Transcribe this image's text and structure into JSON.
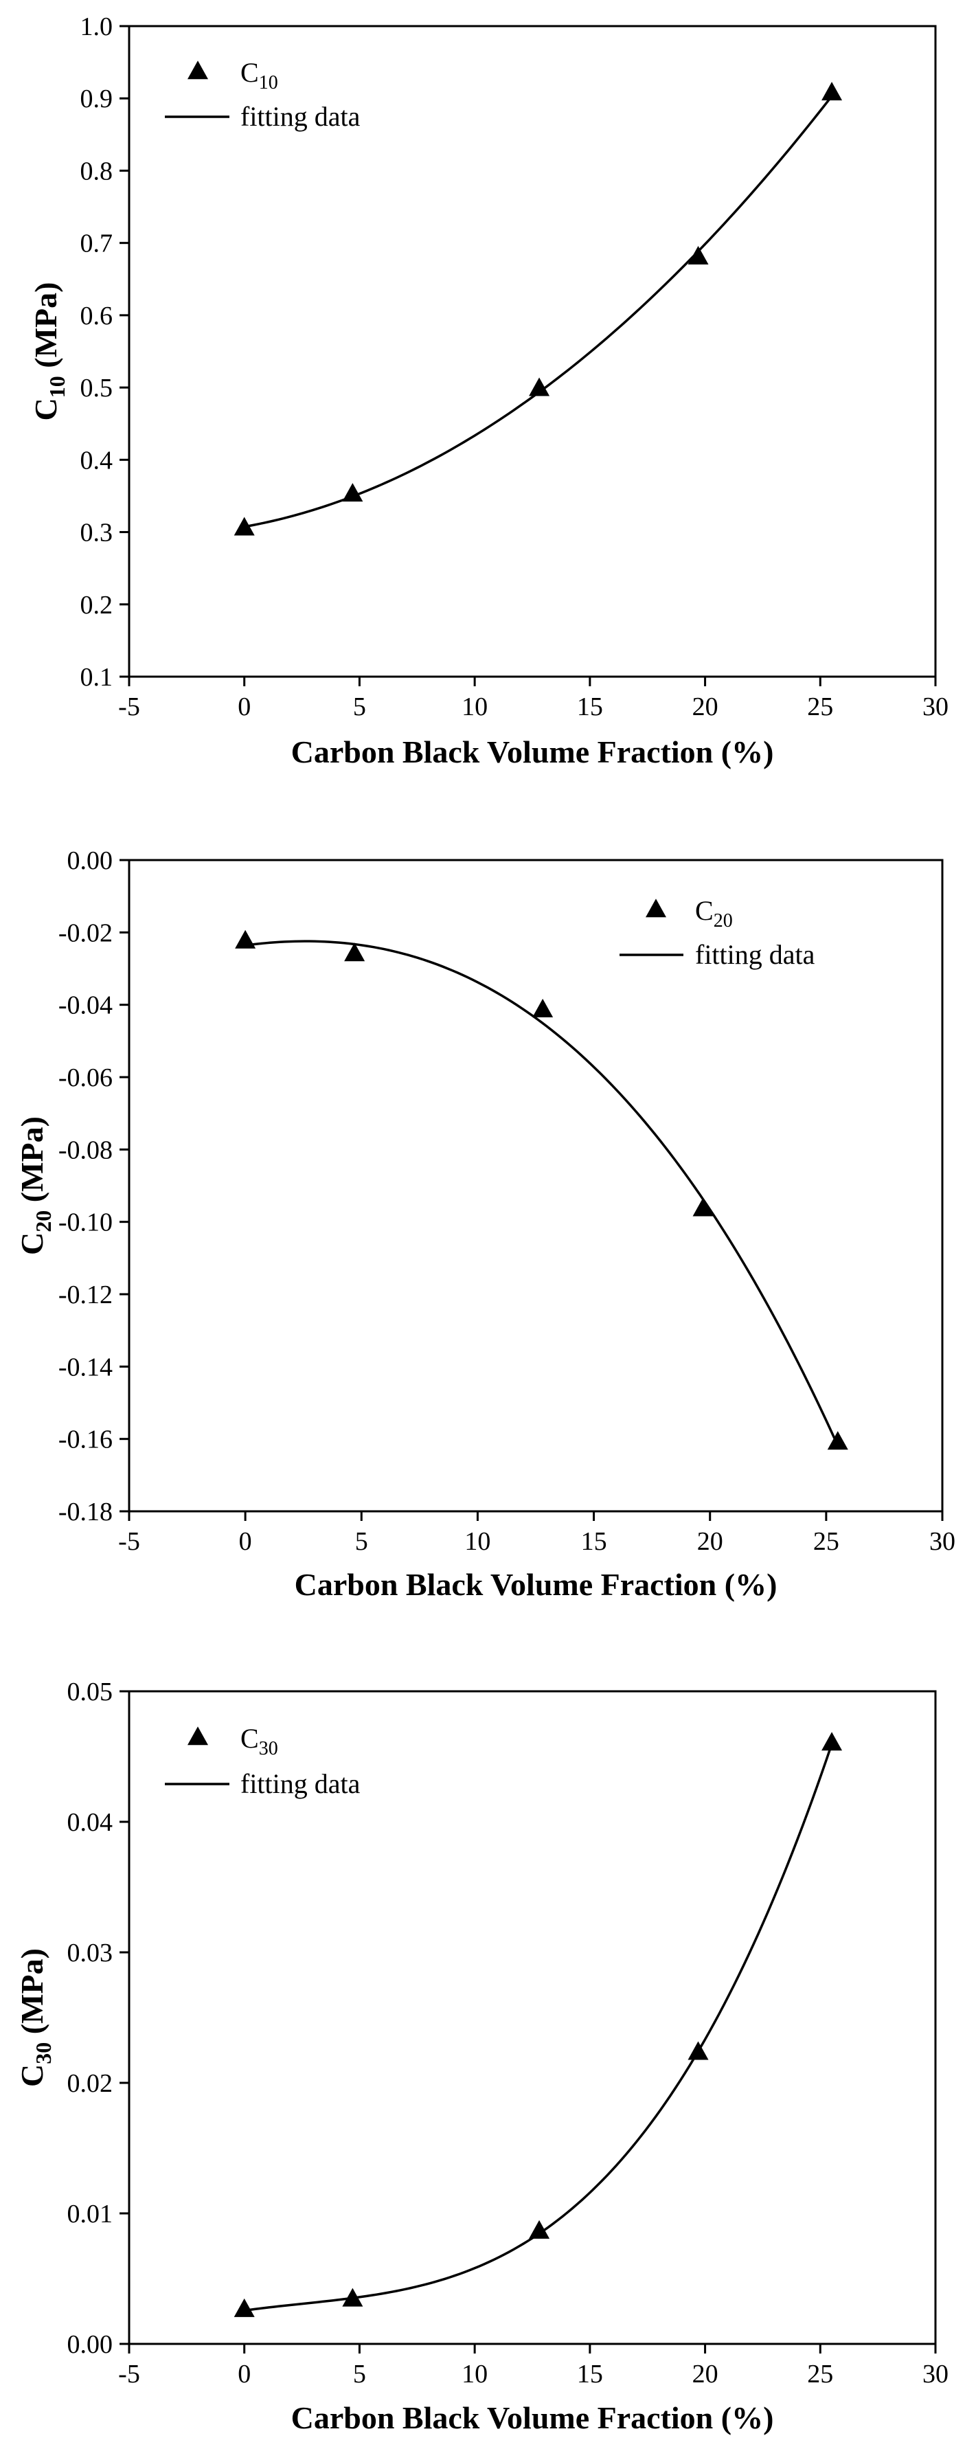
{
  "chart_data": [
    {
      "type": "scatter",
      "x": [
        0,
        4.7,
        12.8,
        19.7,
        25.5
      ],
      "series": [
        {
          "name": "C10",
          "marker": "triangle",
          "values": [
            0.305,
            0.352,
            0.498,
            0.68,
            0.907
          ]
        },
        {
          "name": "fitting data",
          "type": "line",
          "fit": "quadratic"
        }
      ],
      "legend": {
        "symbol_main": "C",
        "symbol_sub": "10",
        "line_label": "fitting data",
        "placement": "top-left"
      },
      "xlabel": "Carbon Black Volume Fraction (%)",
      "ylabel_main": "C",
      "ylabel_sub": "10",
      "ylabel_unit": " (MPa)",
      "xlim": [
        -5,
        30
      ],
      "ylim": [
        0.1,
        1.0
      ],
      "xticks": [
        -5,
        0,
        5,
        10,
        15,
        20,
        25,
        30
      ],
      "yticks": [
        0.1,
        0.2,
        0.3,
        0.4,
        0.5,
        0.6,
        0.7,
        0.8,
        0.9,
        1.0
      ],
      "xtick_labels": [
        "-5",
        "0",
        "5",
        "10",
        "15",
        "20",
        "25",
        "30"
      ],
      "ytick_labels": [
        "0.1",
        "0.2",
        "0.3",
        "0.4",
        "0.5",
        "0.6",
        "0.7",
        "0.8",
        "0.9",
        "1.0"
      ],
      "grid": false
    },
    {
      "type": "scatter",
      "x": [
        0,
        4.7,
        12.8,
        19.7,
        25.5
      ],
      "series": [
        {
          "name": "C20",
          "marker": "triangle",
          "values": [
            -0.0225,
            -0.026,
            -0.0415,
            -0.0965,
            -0.161
          ]
        },
        {
          "name": "fitting data",
          "type": "line",
          "fit": "cubic"
        }
      ],
      "legend": {
        "symbol_main": "C",
        "symbol_sub": "20",
        "line_label": "fitting data",
        "placement": "top-right"
      },
      "xlabel": "Carbon Black Volume Fraction (%)",
      "ylabel_main": "C",
      "ylabel_sub": "20",
      "ylabel_unit": " (MPa)",
      "xlim": [
        -5,
        30
      ],
      "ylim": [
        -0.18,
        0.0
      ],
      "xticks": [
        -5,
        0,
        5,
        10,
        15,
        20,
        25,
        30
      ],
      "yticks": [
        -0.18,
        -0.16,
        -0.14,
        -0.12,
        -0.1,
        -0.08,
        -0.06,
        -0.04,
        -0.02,
        0.0
      ],
      "xtick_labels": [
        "-5",
        "0",
        "5",
        "10",
        "15",
        "20",
        "25",
        "30"
      ],
      "ytick_labels": [
        "-0.18",
        "-0.16",
        "-0.14",
        "-0.12",
        "-0.10",
        "-0.08",
        "-0.06",
        "-0.04",
        "-0.02",
        "0.00"
      ],
      "grid": false
    },
    {
      "type": "scatter",
      "x": [
        0,
        4.7,
        12.8,
        19.7,
        25.5
      ],
      "series": [
        {
          "name": "C30",
          "marker": "triangle",
          "values": [
            0.0026,
            0.0034,
            0.0086,
            0.0223,
            0.046
          ]
        },
        {
          "name": "fitting data",
          "type": "line",
          "fit": "cubic"
        }
      ],
      "legend": {
        "symbol_main": "C",
        "symbol_sub": "30",
        "line_label": "fitting data",
        "placement": "top-left"
      },
      "xlabel": "Carbon Black Volume Fraction (%)",
      "ylabel_main": "C",
      "ylabel_sub": "30",
      "ylabel_unit": " (MPa)",
      "xlim": [
        -5,
        30
      ],
      "ylim": [
        0.0,
        0.05
      ],
      "xticks": [
        -5,
        0,
        5,
        10,
        15,
        20,
        25,
        30
      ],
      "yticks": [
        0.0,
        0.01,
        0.02,
        0.03,
        0.04,
        0.05
      ],
      "xtick_labels": [
        "-5",
        "0",
        "5",
        "10",
        "15",
        "20",
        "25",
        "30"
      ],
      "ytick_labels": [
        "0.00",
        "0.01",
        "0.02",
        "0.03",
        "0.04",
        "0.05"
      ],
      "grid": false
    }
  ]
}
